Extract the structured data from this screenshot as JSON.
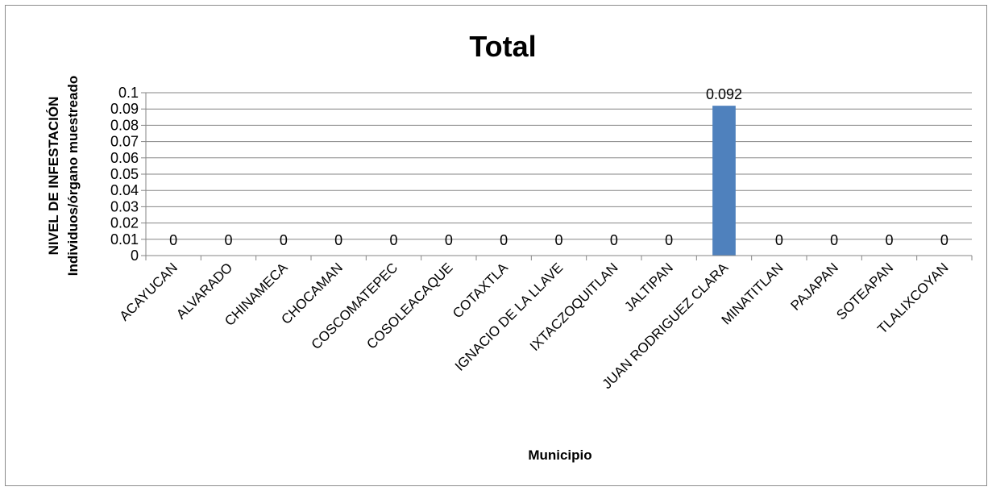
{
  "chart_data": {
    "type": "bar",
    "title": "Total",
    "xlabel": "Municipio",
    "ylabel": [
      "NIVEL DE INFESTACIÓN",
      "Individuos/órgano muestreado"
    ],
    "categories": [
      "ACAYUCAN",
      "ALVARADO",
      "CHINAMECA",
      "CHOCAMAN",
      "COSCOMATEPEC",
      "COSOLEACAQUE",
      "COTAXTLA",
      "IGNACIO DE LA LLAVE",
      "IXTACZOQUITLAN",
      "JALTIPAN",
      "JUAN RODRIGUEZ CLARA",
      "MINATITLAN",
      "PAJAPAN",
      "SOTEAPAN",
      "TLALIXCOYAN"
    ],
    "values": [
      0,
      0,
      0,
      0,
      0,
      0,
      0,
      0,
      0,
      0,
      0.092,
      0,
      0,
      0,
      0
    ],
    "data_labels": [
      "0",
      "0",
      "0",
      "0",
      "0",
      "0",
      "0",
      "0",
      "0",
      "0",
      "0.092",
      "0",
      "0",
      "0",
      "0"
    ],
    "ylim": [
      0,
      0.1
    ],
    "yticks": [
      "0",
      "0.01",
      "0.02",
      "0.03",
      "0.04",
      "0.05",
      "0.06",
      "0.07",
      "0.08",
      "0.09",
      "0.1"
    ],
    "grid": true,
    "bar_color": "#4f81bd",
    "legend": "none"
  }
}
